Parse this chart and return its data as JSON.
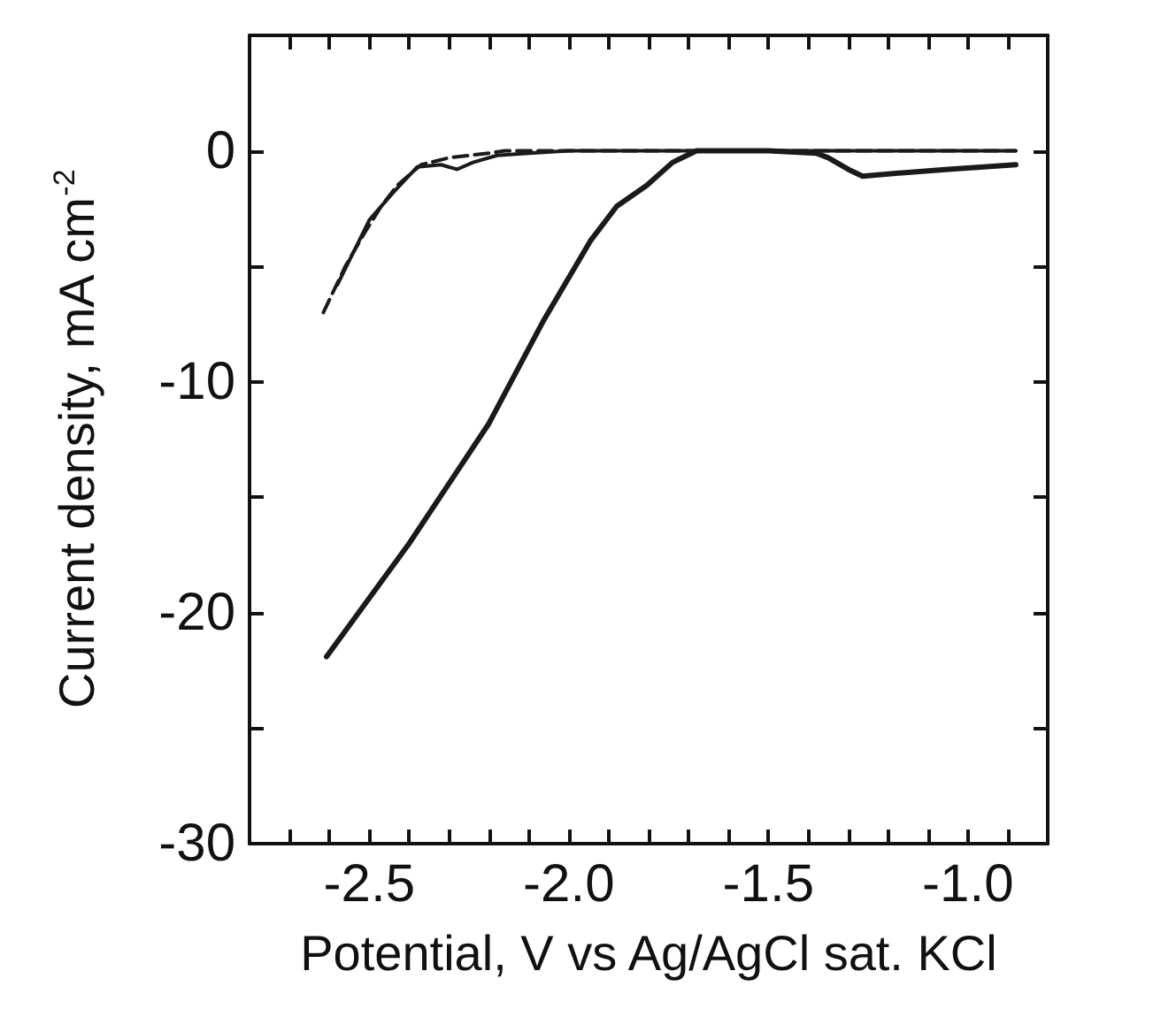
{
  "chart_data": {
    "type": "line",
    "xlabel": "Potential, V vs Ag/AgCl sat. KCl",
    "ylabel": "Current density, mA cm$^{-2}$",
    "xlim": [
      -2.8,
      -0.8
    ],
    "xticks": [
      {
        "value": -2.7,
        "label": null
      },
      {
        "value": -2.6,
        "label": null
      },
      {
        "value": -2.5,
        "label": "-2.5"
      },
      {
        "value": -2.4,
        "label": null
      },
      {
        "value": -2.3,
        "label": null
      },
      {
        "value": -2.2,
        "label": null
      },
      {
        "value": -2.1,
        "label": null
      },
      {
        "value": -2.0,
        "label": "-2.0"
      },
      {
        "value": -1.9,
        "label": null
      },
      {
        "value": -1.8,
        "label": null
      },
      {
        "value": -1.7,
        "label": null
      },
      {
        "value": -1.6,
        "label": null
      },
      {
        "value": -1.5,
        "label": "-1.5"
      },
      {
        "value": -1.4,
        "label": null
      },
      {
        "value": -1.3,
        "label": null
      },
      {
        "value": -1.2,
        "label": null
      },
      {
        "value": -1.1,
        "label": null
      },
      {
        "value": -1.0,
        "label": "-1.0"
      },
      {
        "value": -0.9,
        "label": null
      }
    ],
    "ylim": [
      -30,
      5
    ],
    "yticks": [
      -30,
      {
        "value": -25,
        "label": null
      },
      -20,
      {
        "value": -15,
        "label": null
      },
      -10,
      {
        "value": -5,
        "label": null
      },
      0
    ],
    "grid": false,
    "marker": "none",
    "series": [
      {
        "color": "#1a1a1a",
        "line_style": "solid",
        "x": [
          -2.607,
          -2.4,
          -2.2,
          -2.065,
          -1.946,
          -1.88,
          -1.805,
          -1.74,
          -1.68,
          -1.5,
          -1.38,
          -1.35,
          -1.3,
          -1.264,
          -1.2,
          -1.05,
          -0.88
        ],
        "values": [
          -21.9,
          -17.0,
          -11.8,
          -7.4,
          -3.9,
          -2.4,
          -1.5,
          -0.5,
          0,
          0,
          -0.1,
          -0.3,
          -0.8,
          -1.1,
          -1.0,
          -0.8,
          -0.6
        ]
      },
      {
        "color": "#1a1a1a",
        "line_style": "dashed",
        "x": [
          -2.615,
          -2.56,
          -2.51,
          -2.47,
          -2.43,
          -2.37,
          -2.3,
          -2.2,
          -2.16,
          -2.0,
          -1.8,
          -1.6,
          -1.3,
          -1.0,
          -0.88
        ],
        "values": [
          -7.0,
          -5.0,
          -3.5,
          -2.4,
          -1.5,
          -0.6,
          -0.3,
          -0.1,
          0,
          0,
          0,
          0,
          0,
          0,
          0
        ]
      },
      {
        "color": "#1a1a1a",
        "line_style": "solid",
        "x": [
          -2.58,
          -2.5,
          -2.44,
          -2.38,
          -2.32,
          -2.28,
          -2.24,
          -2.18,
          -2.1,
          -2.0,
          -1.8,
          -1.5,
          -1.2,
          -0.88
        ],
        "values": [
          -5.8,
          -3.0,
          -1.8,
          -0.7,
          -0.6,
          -0.8,
          -0.5,
          -0.2,
          -0.1,
          0,
          0,
          0,
          0,
          0
        ]
      }
    ]
  }
}
